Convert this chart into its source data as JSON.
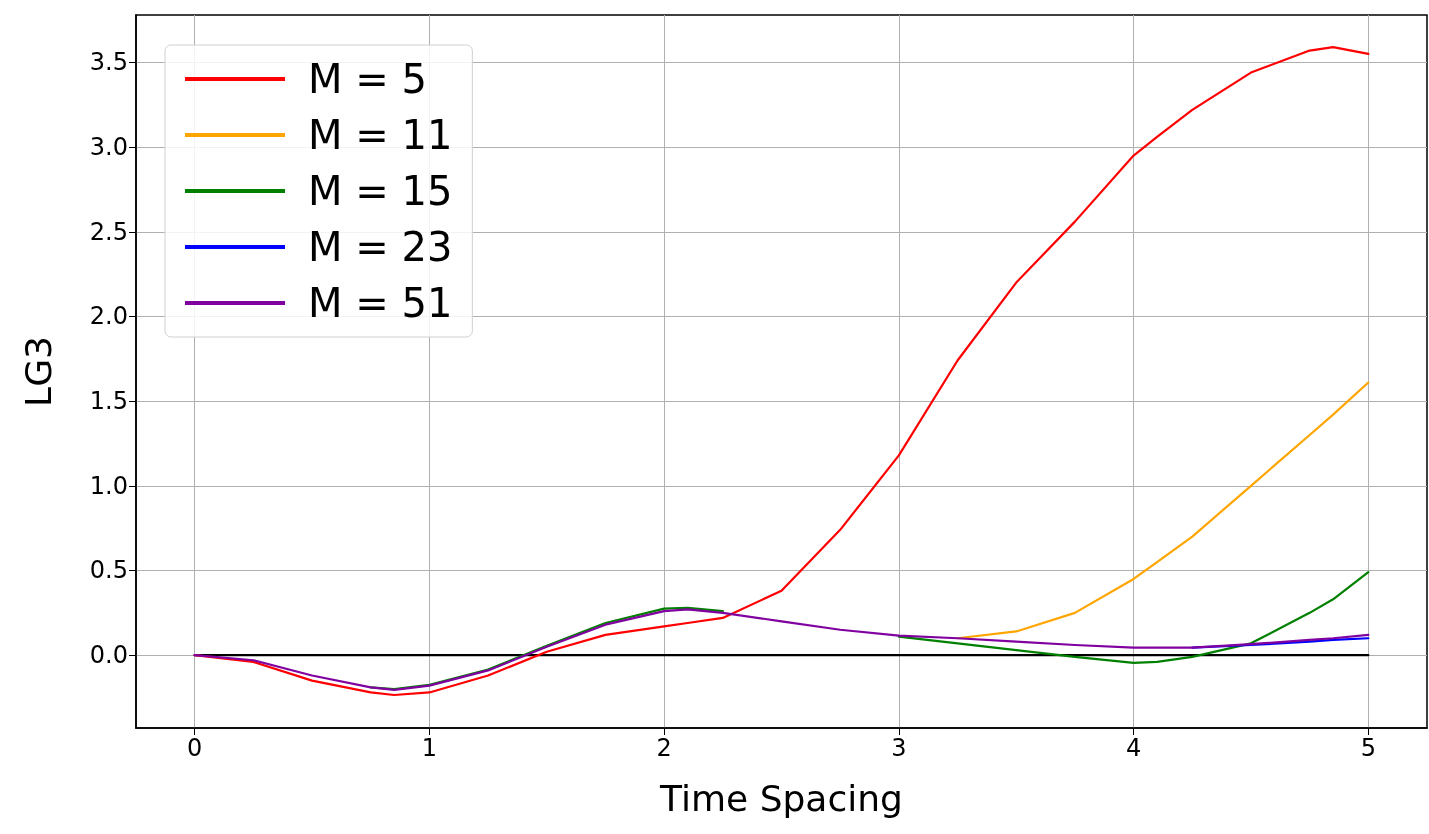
{
  "chart_data": {
    "type": "line",
    "xlabel": "Time Spacing",
    "ylabel": "LG3",
    "x": [
      0,
      0.25,
      0.5,
      0.75,
      0.85,
      1.0,
      1.25,
      1.5,
      1.75,
      2.0,
      2.1,
      2.25,
      2.5,
      2.75,
      3.0,
      3.25,
      3.5,
      3.75,
      4.0,
      4.1,
      4.25,
      4.5,
      4.75,
      4.85,
      5.0
    ],
    "series": [
      {
        "name": "M = 5",
        "color": "#ff0000",
        "values": [
          0,
          -0.04,
          -0.15,
          -0.22,
          -0.235,
          -0.22,
          -0.12,
          0.02,
          0.12,
          0.17,
          0.19,
          0.22,
          0.38,
          0.74,
          1.18,
          1.74,
          2.2,
          2.56,
          2.95,
          3.06,
          3.22,
          3.44,
          3.57,
          3.59,
          3.55
        ]
      },
      {
        "name": "M = 11",
        "color": "#ffa500",
        "values": [
          null,
          null,
          null,
          null,
          null,
          null,
          null,
          null,
          null,
          null,
          null,
          null,
          null,
          null,
          null,
          0.1,
          0.14,
          0.25,
          0.45,
          0.55,
          0.7,
          1.0,
          1.3,
          1.42,
          1.61
        ]
      },
      {
        "name": "M = 15",
        "color": "#008000",
        "values": [
          null,
          null,
          null,
          -0.19,
          -0.2,
          -0.175,
          -0.085,
          0.055,
          0.19,
          0.275,
          0.28,
          0.26,
          null,
          null,
          0.11,
          0.07,
          0.03,
          -0.01,
          -0.045,
          -0.04,
          -0.01,
          0.07,
          0.25,
          0.33,
          0.49
        ]
      },
      {
        "name": "M = 23",
        "color": "#0000ff",
        "values": [
          null,
          null,
          null,
          null,
          null,
          null,
          null,
          null,
          null,
          null,
          null,
          null,
          null,
          null,
          null,
          null,
          null,
          null,
          null,
          null,
          0.045,
          0.06,
          0.08,
          0.09,
          0.1
        ]
      },
      {
        "name": "M = 51",
        "color": "#8000a0",
        "values": [
          0,
          -0.03,
          -0.12,
          -0.19,
          -0.205,
          -0.18,
          -0.09,
          0.05,
          0.18,
          0.26,
          0.27,
          0.25,
          0.2,
          0.15,
          0.115,
          0.1,
          0.08,
          0.06,
          0.045,
          0.045,
          0.045,
          0.065,
          0.09,
          0.1,
          0.12
        ]
      },
      {
        "color": "#000000",
        "x": [
          0,
          5
        ],
        "values": [
          0,
          0
        ]
      }
    ],
    "xlim": [
      -0.25,
      5.25
    ],
    "xticks": [
      0,
      1,
      2,
      3,
      4,
      5
    ],
    "ylim": [
      -0.43,
      3.78
    ],
    "yticks": [
      {
        "value": 0,
        "label": "0.0"
      },
      {
        "value": 0.5,
        "label": "0.5"
      },
      {
        "value": 1,
        "label": "1.0"
      },
      {
        "value": 1.5,
        "label": "1.5"
      },
      {
        "value": 2,
        "label": "2.0"
      },
      {
        "value": 2.5,
        "label": "2.5"
      },
      {
        "value": 3,
        "label": "3.0"
      },
      {
        "value": 3.5,
        "label": "3.5"
      }
    ],
    "grid": true,
    "legend": "top left",
    "marker": "none",
    "line_style": "solid"
  }
}
